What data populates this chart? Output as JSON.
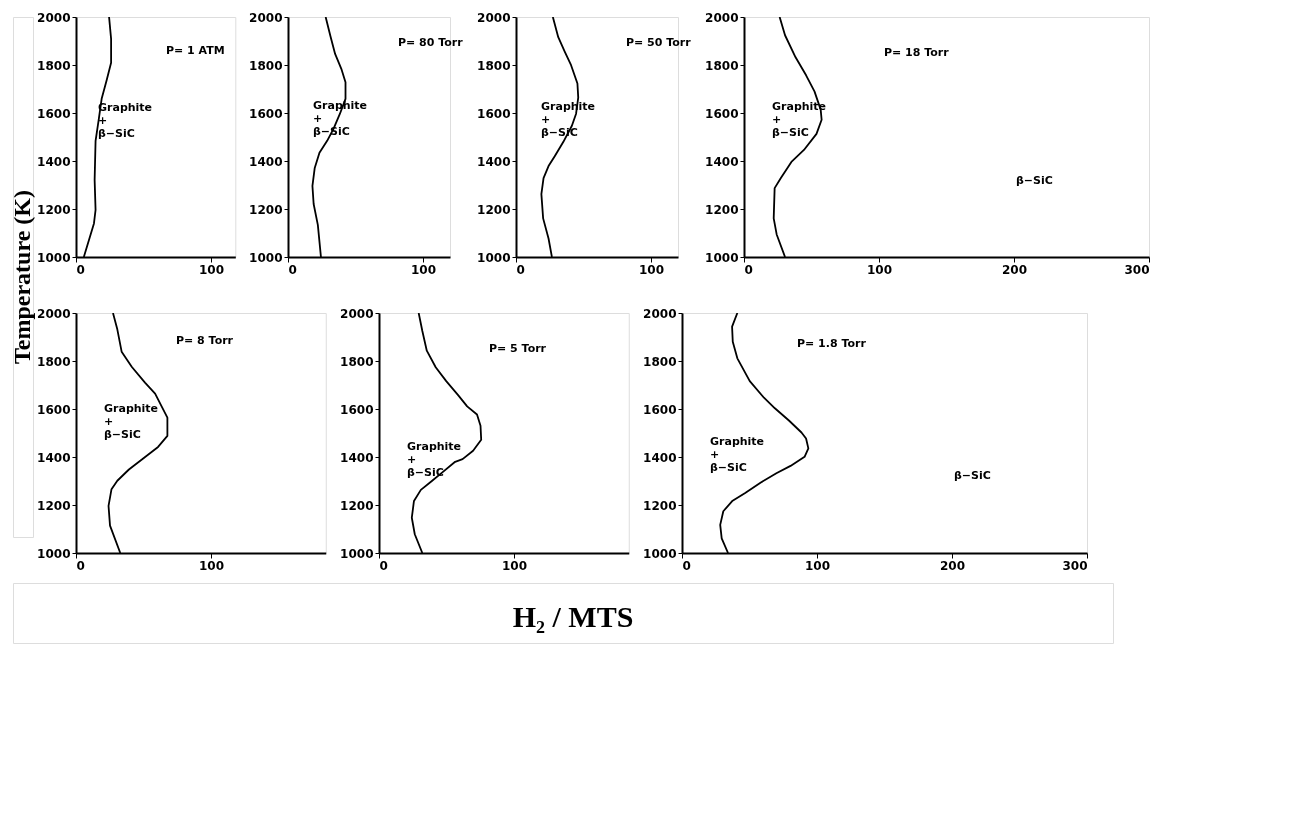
{
  "chart_data": [
    {
      "type": "line",
      "ylabel": "Temperature (K)",
      "xlim": [
        0,
        118
      ],
      "ylim": [
        1000,
        2000
      ],
      "xticks": [
        0,
        100
      ],
      "yticks": [
        1000,
        1200,
        1400,
        1600,
        1800,
        2000
      ],
      "series": [
        {
          "color": "#000000",
          "x": [
            24.5,
            26,
            26,
            22.6,
            19,
            16.8,
            14.5,
            13.8,
            14.5,
            13.3,
            5.8
          ],
          "values": [
            2000,
            1909,
            1809,
            1734,
            1659,
            1571,
            1484,
            1321,
            1196,
            1140,
            1000
          ]
        }
      ],
      "annotations": [
        "P= 1 ATM",
        "Graphite\n+\nβ−SiC"
      ]
    },
    {
      "type": "line",
      "xlim": [
        0,
        120
      ],
      "ylim": [
        1000,
        2000
      ],
      "xticks": [
        0,
        100
      ],
      "yticks": [
        1000,
        1200,
        1400,
        1600,
        1800,
        2000
      ],
      "series": [
        {
          "color": "#000000",
          "x": [
            27.9,
            31.4,
            34.9,
            39.5,
            42.6,
            42.6,
            38.4,
            33.7,
            29,
            23.3,
            19.8,
            18.1,
            19,
            22.1,
            24.4
          ],
          "values": [
            2000,
            1921,
            1846,
            1784,
            1728,
            1659,
            1596,
            1534,
            1484,
            1434,
            1371,
            1296,
            1221,
            1134,
            1000
          ]
        }
      ],
      "annotations": [
        "P= 80 Torr",
        "Graphite\n+\nβ−SiC"
      ]
    },
    {
      "type": "line",
      "xlim": [
        0,
        120
      ],
      "ylim": [
        1000,
        2000
      ],
      "xticks": [
        0,
        100
      ],
      "yticks": [
        1000,
        1200,
        1400,
        1600,
        1800,
        2000
      ],
      "series": [
        {
          "color": "#000000",
          "x": [
            27.3,
            31.3,
            36,
            40.8,
            45.5,
            46.1,
            44.5,
            41.4,
            35.1,
            28.8,
            24.1,
            20.4,
            18.8,
            20.1,
            24.1,
            26.6
          ],
          "values": [
            2000,
            1916,
            1857,
            1799,
            1723,
            1664,
            1597,
            1547,
            1480,
            1421,
            1379,
            1329,
            1262,
            1161,
            1077,
            1000
          ]
        }
      ],
      "annotations": [
        "P= 50 Torr",
        "Graphite\n+\nβ−SiC"
      ]
    },
    {
      "type": "line",
      "xlim": [
        0,
        300
      ],
      "ylim": [
        1000,
        2000
      ],
      "xticks": [
        0,
        100,
        200,
        300
      ],
      "yticks": [
        1000,
        1200,
        1400,
        1600,
        1800,
        2000
      ],
      "series": [
        {
          "color": "#000000",
          "x": [
            26.4,
            30.4,
            38.2,
            46,
            52.2,
            56.8,
            57.5,
            53.7,
            44.4,
            35.1,
            27.3,
            22.7,
            22,
            24.2,
            30.4
          ],
          "values": [
            2000,
            1924,
            1832,
            1757,
            1690,
            1614,
            1572,
            1513,
            1446,
            1396,
            1329,
            1287,
            1161,
            1094,
            1000
          ]
        }
      ],
      "annotations": [
        "P= 18 Torr",
        "Graphite\n+\nβ−SiC",
        "β−SiC"
      ]
    },
    {
      "type": "line",
      "xlim": [
        0,
        185
      ],
      "ylim": [
        1000,
        2000
      ],
      "xticks": [
        0,
        100
      ],
      "yticks": [
        1000,
        1200,
        1400,
        1600,
        1800,
        2000
      ],
      "series": [
        {
          "color": "#000000",
          "x": [
            27.4,
            30.6,
            33.8,
            41.4,
            51.1,
            58.6,
            64,
            67.7,
            67.7,
            60.8,
            50,
            39.2,
            30.6,
            26.3,
            24.1,
            25.2,
            32.8
          ],
          "values": [
            2000,
            1932,
            1839,
            1775,
            1710,
            1664,
            1605,
            1564,
            1488,
            1442,
            1395,
            1348,
            1301,
            1266,
            1196,
            1114,
            1000
          ]
        }
      ],
      "annotations": [
        "P= 8 Torr",
        "Graphite\n+\nβ−SiC"
      ]
    },
    {
      "type": "line",
      "xlabel": "H₂ / MTS",
      "xlim": [
        0,
        185
      ],
      "ylim": [
        1000,
        2000
      ],
      "xticks": [
        0,
        100
      ],
      "yticks": [
        1000,
        1200,
        1400,
        1600,
        1800,
        2000
      ],
      "series": [
        {
          "color": "#000000",
          "x": [
            29.4,
            32.1,
            35.4,
            42,
            49.8,
            58.6,
            65.3,
            72.6,
            75.2,
            75.7,
            69.7,
            61.9,
            56.4,
            47.6,
            38.7,
            31,
            25.9,
            24.3,
            26.5,
            32.1
          ],
          "values": [
            2000,
            1925,
            1843,
            1774,
            1716,
            1658,
            1611,
            1577,
            1530,
            1472,
            1426,
            1391,
            1380,
            1339,
            1298,
            1263,
            1217,
            1147,
            1078,
            1000
          ]
        }
      ],
      "annotations": [
        "P= 5 Torr",
        "Graphite\n+\nβ−SiC"
      ]
    },
    {
      "type": "line",
      "xlim": [
        0,
        300
      ],
      "ylim": [
        1000,
        2000
      ],
      "xticks": [
        0,
        100,
        200,
        300
      ],
      "yticks": [
        1000,
        1200,
        1400,
        1600,
        1800,
        2000
      ],
      "series": [
        {
          "color": "#000000",
          "x": [
            41,
            37.1,
            37.6,
            41,
            50.2,
            60.7,
            68.8,
            79.2,
            88.5,
            91.9,
            93.6,
            90.8,
            80.4,
            69.9,
            58.4,
            46.8,
            37.5,
            30.6,
            28.3,
            29.4,
            34.1
          ],
          "values": [
            2000,
            1943,
            1880,
            1811,
            1716,
            1647,
            1603,
            1552,
            1502,
            1477,
            1436,
            1401,
            1363,
            1332,
            1294,
            1250,
            1218,
            1174,
            1117,
            1061,
            1000
          ]
        }
      ],
      "annotations": [
        "P= 1.8 Torr",
        "Graphite\n+\nβ−SiC",
        "β−SiC"
      ]
    }
  ]
}
